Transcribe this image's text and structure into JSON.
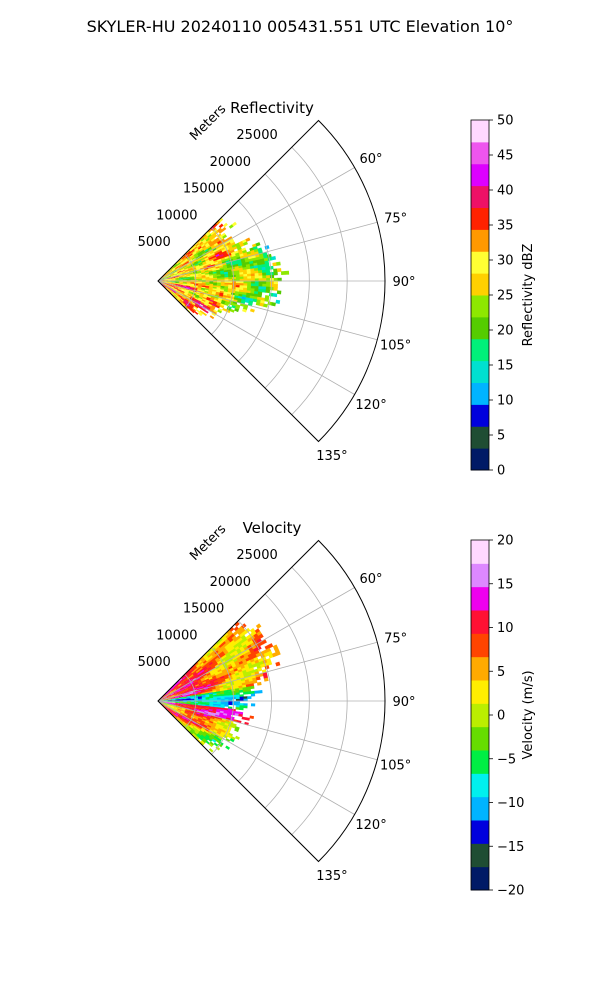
{
  "title": "SKYLER-HU  20240110  005431.551 UTC Elevation 10°",
  "chart_data": [
    {
      "type": "heatmap",
      "projection": "polar-sector",
      "title": "Reflectivity",
      "radial_label": "Meters",
      "radial_ticks": [
        5000,
        10000,
        15000,
        20000,
        25000
      ],
      "radial_tick_labels": [
        "5000",
        "10000",
        "15000",
        "20000",
        "25000"
      ],
      "rlim": [
        0,
        30000
      ],
      "angular_ticks": [
        60,
        75,
        90,
        105,
        120,
        135
      ],
      "angular_tick_labels": [
        "60°",
        "75°",
        "90°",
        "105°",
        "120°",
        "135°"
      ],
      "thetalim": [
        45,
        135
      ],
      "data_extent_r": 18000,
      "colorbar": {
        "label": "Reflectivity dBZ",
        "range": [
          0,
          50
        ],
        "ticks": [
          0,
          5,
          10,
          15,
          20,
          25,
          30,
          35,
          40,
          45,
          50
        ],
        "tick_labels": [
          "0",
          "5",
          "10",
          "15",
          "20",
          "25",
          "30",
          "35",
          "40",
          "45",
          "50"
        ],
        "colors": [
          "#001a66",
          "#1f4d33",
          "#0000dd",
          "#00b4ff",
          "#00e0d0",
          "#00f07a",
          "#55cc00",
          "#8ee800",
          "#ffd000",
          "#ffff33",
          "#ff9900",
          "#ff2200",
          "#ee1166",
          "#dd00ff",
          "#ee55ee",
          "#ffd8ff"
        ]
      }
    },
    {
      "type": "heatmap",
      "projection": "polar-sector",
      "title": "Velocity",
      "radial_label": "Meters",
      "radial_ticks": [
        5000,
        10000,
        15000,
        20000,
        25000
      ],
      "radial_tick_labels": [
        "5000",
        "10000",
        "15000",
        "20000",
        "25000"
      ],
      "rlim": [
        0,
        30000
      ],
      "angular_ticks": [
        60,
        75,
        90,
        105,
        120,
        135
      ],
      "angular_tick_labels": [
        "60°",
        "75°",
        "90°",
        "105°",
        "120°",
        "135°"
      ],
      "thetalim": [
        45,
        135
      ],
      "data_extent_r": 18000,
      "colorbar": {
        "label": "Velocity (m/s)",
        "range": [
          -20,
          20
        ],
        "ticks": [
          -20,
          -15,
          -10,
          -5,
          0,
          5,
          10,
          15,
          20
        ],
        "tick_labels": [
          "−20",
          "−15",
          "−10",
          "−5",
          "0",
          "5",
          "10",
          "15",
          "20"
        ],
        "colors": [
          "#001a66",
          "#1f4d33",
          "#0000dd",
          "#00b4ff",
          "#00f0ee",
          "#00ee44",
          "#66dd00",
          "#bbee00",
          "#ffee00",
          "#ffaa00",
          "#ff4400",
          "#ff1133",
          "#ee00ee",
          "#dd88ff",
          "#ffd8ff"
        ]
      }
    }
  ]
}
